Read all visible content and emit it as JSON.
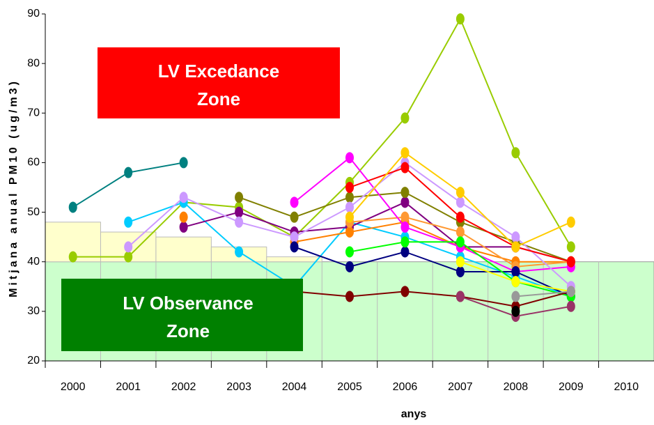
{
  "chart_data": {
    "type": "line",
    "y_label": "Mitjana anual PM10 (ug/m3)",
    "x_label": "anys",
    "annotations": [
      "LV Excedance",
      "Zone",
      "LV Observance",
      "Zone"
    ],
    "categories": [
      "2000",
      "2001",
      "2002",
      "2003",
      "2004",
      "2005",
      "2006",
      "2007",
      "2008",
      "2009",
      "2010"
    ],
    "ylim": [
      20,
      90
    ],
    "yticks": [
      20,
      30,
      40,
      50,
      60,
      70,
      80,
      90
    ],
    "limit_value": 40,
    "tolerance_steps": [
      48,
      46,
      45,
      43,
      41
    ],
    "series": [
      {
        "color": "#008080",
        "values": [
          51,
          58,
          60,
          null,
          null,
          null,
          null,
          null,
          null,
          null,
          null
        ]
      },
      {
        "color": "#99cc00",
        "values": [
          41,
          41,
          52,
          51,
          45,
          56,
          69,
          89,
          62,
          43,
          null
        ]
      },
      {
        "color": "#00ccff",
        "values": [
          null,
          48,
          52,
          42,
          35,
          48,
          45,
          41,
          37,
          33,
          null
        ]
      },
      {
        "color": "#800080",
        "values": [
          null,
          null,
          47,
          50,
          46,
          47,
          52,
          43,
          43,
          40,
          null
        ]
      },
      {
        "color": "#808000",
        "values": [
          null,
          null,
          null,
          53,
          49,
          53,
          54,
          48,
          44,
          40,
          null
        ]
      },
      {
        "color": "#ff8000",
        "values": [
          null,
          null,
          49,
          null,
          44,
          46,
          48,
          43,
          40,
          40,
          null
        ]
      },
      {
        "color": "#ff9933",
        "values": [
          null,
          null,
          null,
          null,
          null,
          48,
          49,
          46,
          39,
          40,
          null
        ]
      },
      {
        "color": "#ff00ff",
        "values": [
          null,
          null,
          null,
          null,
          52,
          61,
          47,
          43,
          38,
          39,
          null
        ]
      },
      {
        "color": "#cc99ff",
        "values": [
          null,
          43,
          53,
          48,
          45,
          51,
          60,
          52,
          45,
          35,
          null
        ]
      },
      {
        "color": "#ff0000",
        "values": [
          null,
          null,
          null,
          null,
          null,
          55,
          59,
          49,
          43,
          40,
          null
        ]
      },
      {
        "color": "#ffcc00",
        "values": [
          null,
          null,
          null,
          null,
          null,
          49,
          62,
          54,
          43,
          48,
          null
        ]
      },
      {
        "color": "#000080",
        "values": [
          null,
          null,
          null,
          null,
          43,
          39,
          42,
          38,
          38,
          33,
          null
        ]
      },
      {
        "color": "#00ff00",
        "values": [
          null,
          null,
          null,
          null,
          null,
          42,
          44,
          44,
          36,
          33,
          null
        ]
      },
      {
        "color": "#800000",
        "values": [
          null,
          null,
          null,
          null,
          34,
          33,
          34,
          33,
          31,
          34,
          null
        ]
      },
      {
        "color": "#ffff00",
        "values": [
          null,
          null,
          null,
          null,
          null,
          null,
          null,
          40,
          36,
          34,
          null
        ]
      },
      {
        "color": "#993366",
        "values": [
          null,
          null,
          null,
          null,
          null,
          null,
          null,
          33,
          29,
          31,
          null
        ]
      },
      {
        "color": "#000000",
        "values": [
          null,
          null,
          null,
          null,
          null,
          null,
          null,
          null,
          30,
          null,
          null
        ]
      },
      {
        "color": "#999999",
        "values": [
          null,
          null,
          null,
          null,
          null,
          null,
          null,
          null,
          33,
          34,
          null
        ]
      }
    ]
  }
}
